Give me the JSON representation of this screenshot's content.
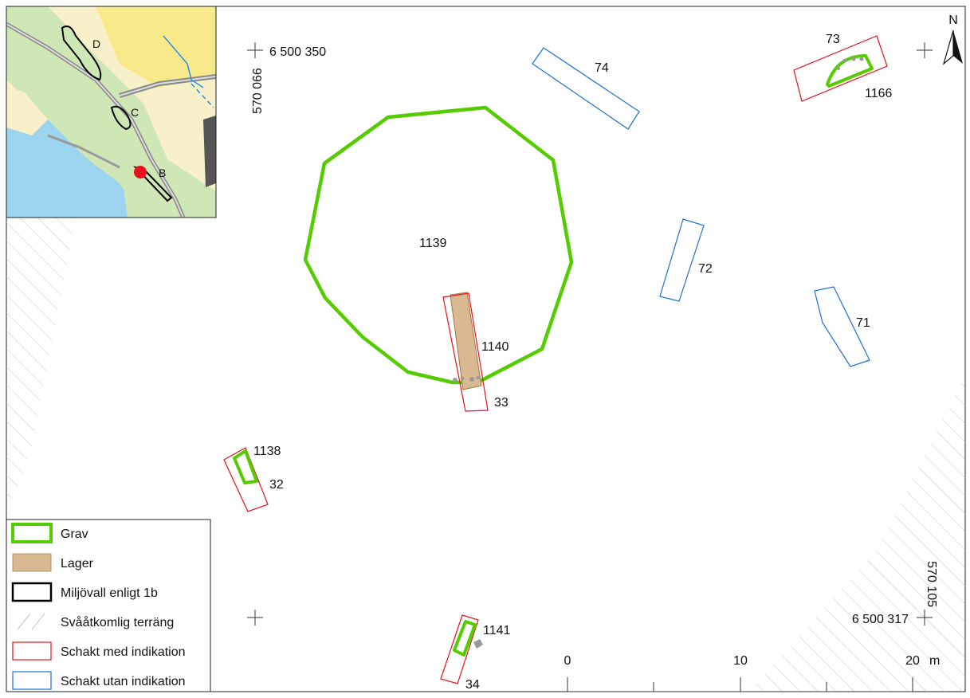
{
  "map": {
    "north_label": "N",
    "coords": {
      "top_left_north": "6 500 350",
      "top_left_east": "570 066",
      "bottom_right_north": "6 500 317",
      "bottom_right_east": "570 105"
    },
    "features": {
      "grave_1139": "1139",
      "layer_1140": "1140",
      "grave_1138": "1138",
      "grave_1141": "1141",
      "grave_1166": "1166",
      "trench_33": "33",
      "trench_32": "32",
      "trench_34": "34",
      "trench_73": "73",
      "trench_74": "74",
      "trench_72": "72",
      "trench_71": "71"
    },
    "inset": {
      "label_d": "D",
      "label_c": "C",
      "label_b": "B"
    },
    "scale": {
      "ticks": [
        "0",
        "10",
        "20"
      ],
      "unit": "m"
    }
  },
  "legend": {
    "items": [
      {
        "label": "Grav",
        "icon": "grave-swatch",
        "color": "#55cc00"
      },
      {
        "label": "Lager",
        "icon": "layer-swatch",
        "color": "#d9b991"
      },
      {
        "label": "Miljövall enligt 1b",
        "icon": "rampart-swatch",
        "color": "#000000"
      },
      {
        "label": "Svååtkomlig terräng",
        "icon": "hatch-swatch",
        "color": "#cccccc"
      },
      {
        "label": "Schakt med indikation",
        "icon": "red-trench-swatch",
        "color": "#e8101c"
      },
      {
        "label": "Schakt utan indikation",
        "icon": "blue-trench-swatch",
        "color": "#1f6fd6"
      }
    ]
  }
}
